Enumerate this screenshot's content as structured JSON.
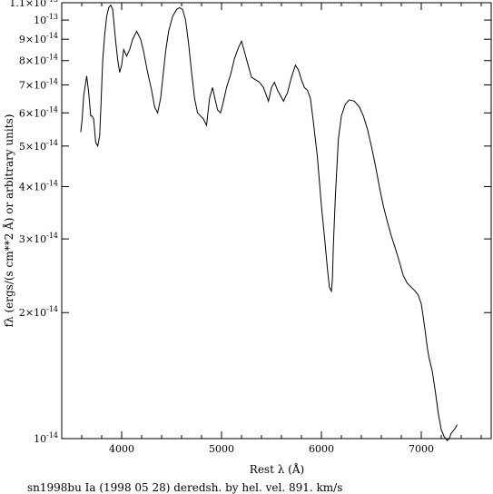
{
  "chart_data": {
    "type": "line",
    "xlabel": "Rest λ (Å)",
    "ylabel": "fλ (ergs/(s cm**2 Å) or arbitrary units)",
    "caption": "sn1998bu Ia (1998 05 28) deredsh. by hel. vel.   891. km/s",
    "xlim": [
      3400,
      7700
    ],
    "ylim": [
      1e-14,
      1.1e-13
    ],
    "yscale": "log",
    "x_ticks": [
      {
        "value": 4000,
        "label": "4000"
      },
      {
        "value": 5000,
        "label": "5000"
      },
      {
        "value": 6000,
        "label": "6000"
      },
      {
        "value": 7000,
        "label": "7000"
      }
    ],
    "y_ticks": [
      {
        "value": 1e-14,
        "mant": "10",
        "exp": "-14"
      },
      {
        "value": 2e-14,
        "mant": "2×10",
        "exp": "-14"
      },
      {
        "value": 3e-14,
        "mant": "3×10",
        "exp": "-14"
      },
      {
        "value": 4e-14,
        "mant": "4×10",
        "exp": "-14"
      },
      {
        "value": 5e-14,
        "mant": "5×10",
        "exp": "-14"
      },
      {
        "value": 6e-14,
        "mant": "6×10",
        "exp": "-14"
      },
      {
        "value": 7e-14,
        "mant": "7×10",
        "exp": "-14"
      },
      {
        "value": 8e-14,
        "mant": "8×10",
        "exp": "-14"
      },
      {
        "value": 9e-14,
        "mant": "9×10",
        "exp": "-14"
      },
      {
        "value": 1e-13,
        "mant": "10",
        "exp": "-13"
      },
      {
        "value": 1.1e-13,
        "mant": "1.1×10",
        "exp": "-13"
      }
    ],
    "grid": false,
    "series": [
      {
        "x": [
          3590,
          3605,
          3620,
          3650,
          3670,
          3690,
          3705,
          3720,
          3740,
          3760,
          3780,
          3795,
          3810,
          3830,
          3850,
          3870,
          3890,
          3910,
          3940,
          3960,
          3980,
          4000,
          4020,
          4050,
          4080,
          4110,
          4150,
          4190,
          4220,
          4260,
          4300,
          4330,
          4360,
          4390,
          4410,
          4440,
          4470,
          4510,
          4550,
          4580,
          4610,
          4640,
          4670,
          4700,
          4730,
          4760,
          4790,
          4820,
          4850,
          4880,
          4910,
          4940,
          4960,
          4990,
          5020,
          5050,
          5090,
          5130,
          5170,
          5200,
          5230,
          5260,
          5300,
          5340,
          5380,
          5420,
          5450,
          5470,
          5500,
          5530,
          5560,
          5590,
          5620,
          5660,
          5700,
          5740,
          5770,
          5800,
          5830,
          5860,
          5890,
          5920,
          5960,
          6000,
          6030,
          6060,
          6080,
          6100,
          6110,
          6120,
          6140,
          6170,
          6200,
          6240,
          6280,
          6330,
          6380,
          6420,
          6460,
          6500,
          6540,
          6580,
          6620,
          6660,
          6700,
          6740,
          6780,
          6820,
          6860,
          6900,
          6940,
          6970,
          7000,
          7020,
          7040,
          7060,
          7080,
          7110,
          7140,
          7170,
          7200,
          7230,
          7260,
          7280,
          7300,
          7330,
          7360
        ],
        "y": [
          5.4e-14,
          5.8e-14,
          6.6e-14,
          7.35e-14,
          6.7e-14,
          5.9e-14,
          5.9e-14,
          5.8e-14,
          5.1e-14,
          5e-14,
          5.3e-14,
          6.5e-14,
          8e-14,
          9.2e-14,
          1.02e-13,
          1.07e-13,
          1.085e-13,
          1.06e-13,
          8.9e-14,
          8.05e-14,
          7.5e-14,
          7.8e-14,
          8.5e-14,
          8.2e-14,
          8.5e-14,
          9e-14,
          9.4e-14,
          9e-14,
          8.4e-14,
          7.5e-14,
          6.8e-14,
          6.2e-14,
          6e-14,
          6.5e-14,
          7.2e-14,
          8.4e-14,
          9.4e-14,
          1.02e-13,
          1.06e-13,
          1.07e-13,
          1.06e-13,
          1e-13,
          8.8e-14,
          7.5e-14,
          6.5e-14,
          6e-14,
          5.9e-14,
          5.8e-14,
          5.6e-14,
          6.5e-14,
          6.9e-14,
          6.4e-14,
          6.1e-14,
          6e-14,
          6.4e-14,
          6.9e-14,
          7.4e-14,
          8.1e-14,
          8.6e-14,
          8.9e-14,
          8.4e-14,
          7.9e-14,
          7.3e-14,
          7.2e-14,
          7.1e-14,
          6.9e-14,
          6.6e-14,
          6.4e-14,
          6.9e-14,
          7.1e-14,
          6.8e-14,
          6.6e-14,
          6.4e-14,
          6.7e-14,
          7.3e-14,
          7.8e-14,
          7.6e-14,
          7.2e-14,
          6.9e-14,
          6.8e-14,
          6.5e-14,
          5.7e-14,
          4.7e-14,
          3.6e-14,
          3.05e-14,
          2.55e-14,
          2.3e-14,
          2.25e-14,
          2.4e-14,
          2.9e-14,
          3.8e-14,
          5.2e-14,
          5.9e-14,
          6.3e-14,
          6.45e-14,
          6.4e-14,
          6.2e-14,
          5.9e-14,
          5.5e-14,
          5e-14,
          4.5e-14,
          4e-14,
          3.6e-14,
          3.3e-14,
          3.05e-14,
          2.85e-14,
          2.65e-14,
          2.45e-14,
          2.35e-14,
          2.3e-14,
          2.25e-14,
          2.2e-14,
          2.1e-14,
          1.95e-14,
          1.8e-14,
          1.65e-14,
          1.55e-14,
          1.45e-14,
          1.3e-14,
          1.15e-14,
          1.05e-14,
          1.01e-14,
          9.9e-15,
          1e-14,
          1.03e-14,
          1.05e-14,
          1.08e-14
        ]
      }
    ]
  }
}
